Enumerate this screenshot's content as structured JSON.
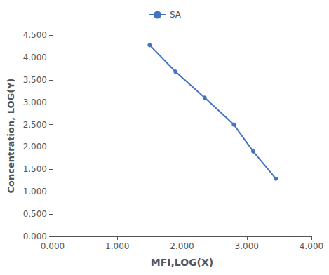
{
  "chart_data": {
    "type": "line",
    "x": [
      1.5,
      1.9,
      2.35,
      2.8,
      3.1,
      3.45
    ],
    "series": [
      {
        "name": "SA",
        "color": "#4472C4",
        "marker": "circle",
        "values": [
          4.275,
          3.68,
          3.1,
          2.5,
          1.9,
          1.29
        ]
      }
    ],
    "xlabel": "MFI,LOG(X)",
    "ylabel": "Concentration, LOG(Y)",
    "xlim": [
      0.0,
      4.0
    ],
    "ylim": [
      0.0,
      4.5
    ],
    "xticks": [
      {
        "value": 0,
        "label": "0.000"
      },
      {
        "value": 1,
        "label": "1.000"
      },
      {
        "value": 2,
        "label": "2.000"
      },
      {
        "value": 3,
        "label": "3.000"
      },
      {
        "value": 4,
        "label": "4.000"
      }
    ],
    "yticks": [
      {
        "value": 0,
        "label": "0.000"
      },
      {
        "value": 0.5,
        "label": "0.500"
      },
      {
        "value": 1,
        "label": "1.000"
      },
      {
        "value": 1.5,
        "label": "1.500"
      },
      {
        "value": 2,
        "label": "2.000"
      },
      {
        "value": 2.5,
        "label": "2.500"
      },
      {
        "value": 3,
        "label": "3.000"
      },
      {
        "value": 3.5,
        "label": "3.500"
      },
      {
        "value": 4,
        "label": "4.000"
      },
      {
        "value": 4.5,
        "label": "4.500"
      }
    ],
    "grid": false,
    "legend": "top"
  }
}
